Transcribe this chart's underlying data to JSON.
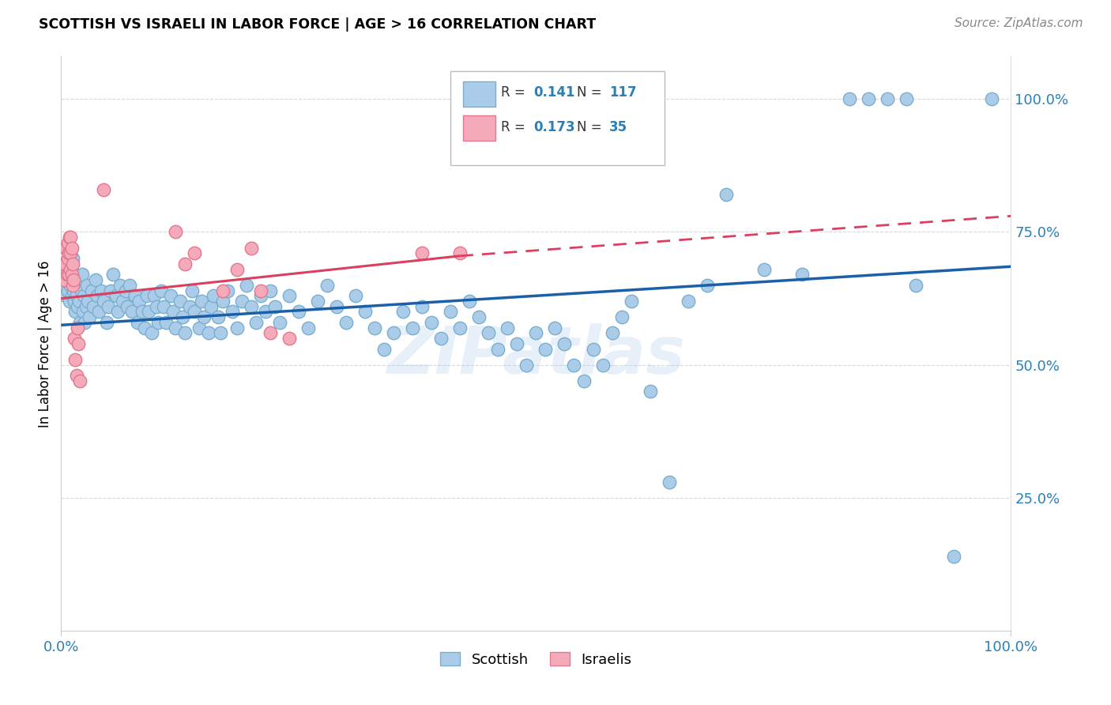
{
  "title": "SCOTTISH VS ISRAELI IN LABOR FORCE | AGE > 16 CORRELATION CHART",
  "source_text": "Source: ZipAtlas.com",
  "ylabel": "In Labor Force | Age > 16",
  "xlim": [
    0.0,
    1.0
  ],
  "ylim": [
    0.0,
    1.08
  ],
  "y_tick_positions": [
    0.25,
    0.5,
    0.75,
    1.0
  ],
  "y_tick_labels": [
    "25.0%",
    "50.0%",
    "75.0%",
    "100.0%"
  ],
  "watermark": "ZIPatlas",
  "blue_color": "#aacce8",
  "pink_color": "#f4aab8",
  "blue_edge": "#7aaece",
  "pink_edge": "#e07890",
  "trend_blue_color": "#1a5fa8",
  "trend_pink_color": "#d94060",
  "blue_trend": [
    0.0,
    0.575,
    1.0,
    0.685
  ],
  "pink_trend_solid": [
    0.0,
    0.625,
    0.42,
    0.705
  ],
  "pink_trend_dashed": [
    0.42,
    0.705,
    1.0,
    0.78
  ],
  "blue_points": [
    [
      0.003,
      0.65
    ],
    [
      0.005,
      0.63
    ],
    [
      0.006,
      0.67
    ],
    [
      0.007,
      0.64
    ],
    [
      0.008,
      0.66
    ],
    [
      0.009,
      0.62
    ],
    [
      0.01,
      0.65
    ],
    [
      0.01,
      0.68
    ],
    [
      0.011,
      0.63
    ],
    [
      0.012,
      0.66
    ],
    [
      0.012,
      0.7
    ],
    [
      0.013,
      0.64
    ],
    [
      0.014,
      0.62
    ],
    [
      0.014,
      0.67
    ],
    [
      0.015,
      0.65
    ],
    [
      0.015,
      0.6
    ],
    [
      0.016,
      0.63
    ],
    [
      0.017,
      0.61
    ],
    [
      0.018,
      0.65
    ],
    [
      0.019,
      0.62
    ],
    [
      0.02,
      0.58
    ],
    [
      0.021,
      0.64
    ],
    [
      0.022,
      0.67
    ],
    [
      0.023,
      0.6
    ],
    [
      0.024,
      0.63
    ],
    [
      0.025,
      0.58
    ],
    [
      0.026,
      0.61
    ],
    [
      0.027,
      0.65
    ],
    [
      0.028,
      0.62
    ],
    [
      0.03,
      0.59
    ],
    [
      0.032,
      0.64
    ],
    [
      0.034,
      0.61
    ],
    [
      0.036,
      0.66
    ],
    [
      0.038,
      0.63
    ],
    [
      0.04,
      0.6
    ],
    [
      0.042,
      0.64
    ],
    [
      0.045,
      0.62
    ],
    [
      0.048,
      0.58
    ],
    [
      0.05,
      0.61
    ],
    [
      0.052,
      0.64
    ],
    [
      0.055,
      0.67
    ],
    [
      0.058,
      0.63
    ],
    [
      0.06,
      0.6
    ],
    [
      0.062,
      0.65
    ],
    [
      0.065,
      0.62
    ],
    [
      0.068,
      0.64
    ],
    [
      0.07,
      0.61
    ],
    [
      0.072,
      0.65
    ],
    [
      0.075,
      0.6
    ],
    [
      0.078,
      0.63
    ],
    [
      0.08,
      0.58
    ],
    [
      0.082,
      0.62
    ],
    [
      0.085,
      0.6
    ],
    [
      0.088,
      0.57
    ],
    [
      0.09,
      0.63
    ],
    [
      0.092,
      0.6
    ],
    [
      0.095,
      0.56
    ],
    [
      0.098,
      0.63
    ],
    [
      0.1,
      0.61
    ],
    [
      0.102,
      0.58
    ],
    [
      0.105,
      0.64
    ],
    [
      0.108,
      0.61
    ],
    [
      0.11,
      0.58
    ],
    [
      0.115,
      0.63
    ],
    [
      0.118,
      0.6
    ],
    [
      0.12,
      0.57
    ],
    [
      0.125,
      0.62
    ],
    [
      0.128,
      0.59
    ],
    [
      0.13,
      0.56
    ],
    [
      0.135,
      0.61
    ],
    [
      0.138,
      0.64
    ],
    [
      0.14,
      0.6
    ],
    [
      0.145,
      0.57
    ],
    [
      0.148,
      0.62
    ],
    [
      0.15,
      0.59
    ],
    [
      0.155,
      0.56
    ],
    [
      0.158,
      0.61
    ],
    [
      0.16,
      0.63
    ],
    [
      0.165,
      0.59
    ],
    [
      0.168,
      0.56
    ],
    [
      0.17,
      0.62
    ],
    [
      0.175,
      0.64
    ],
    [
      0.18,
      0.6
    ],
    [
      0.185,
      0.57
    ],
    [
      0.19,
      0.62
    ],
    [
      0.195,
      0.65
    ],
    [
      0.2,
      0.61
    ],
    [
      0.205,
      0.58
    ],
    [
      0.21,
      0.63
    ],
    [
      0.215,
      0.6
    ],
    [
      0.22,
      0.64
    ],
    [
      0.225,
      0.61
    ],
    [
      0.23,
      0.58
    ],
    [
      0.24,
      0.63
    ],
    [
      0.25,
      0.6
    ],
    [
      0.26,
      0.57
    ],
    [
      0.27,
      0.62
    ],
    [
      0.28,
      0.65
    ],
    [
      0.29,
      0.61
    ],
    [
      0.3,
      0.58
    ],
    [
      0.31,
      0.63
    ],
    [
      0.32,
      0.6
    ],
    [
      0.33,
      0.57
    ],
    [
      0.34,
      0.53
    ],
    [
      0.35,
      0.56
    ],
    [
      0.36,
      0.6
    ],
    [
      0.37,
      0.57
    ],
    [
      0.38,
      0.61
    ],
    [
      0.39,
      0.58
    ],
    [
      0.4,
      0.55
    ],
    [
      0.41,
      0.6
    ],
    [
      0.42,
      0.57
    ],
    [
      0.43,
      0.62
    ],
    [
      0.44,
      0.59
    ],
    [
      0.45,
      0.56
    ],
    [
      0.46,
      0.53
    ],
    [
      0.47,
      0.57
    ],
    [
      0.48,
      0.54
    ],
    [
      0.49,
      0.5
    ],
    [
      0.5,
      0.56
    ],
    [
      0.51,
      0.53
    ],
    [
      0.52,
      0.57
    ],
    [
      0.53,
      0.54
    ],
    [
      0.54,
      0.5
    ],
    [
      0.55,
      0.47
    ],
    [
      0.56,
      0.53
    ],
    [
      0.57,
      0.5
    ],
    [
      0.58,
      0.56
    ],
    [
      0.59,
      0.59
    ],
    [
      0.6,
      0.62
    ],
    [
      0.62,
      0.45
    ],
    [
      0.64,
      0.28
    ],
    [
      0.66,
      0.62
    ],
    [
      0.68,
      0.65
    ],
    [
      0.7,
      0.82
    ],
    [
      0.74,
      0.68
    ],
    [
      0.78,
      0.67
    ],
    [
      0.83,
      1.0
    ],
    [
      0.85,
      1.0
    ],
    [
      0.87,
      1.0
    ],
    [
      0.89,
      1.0
    ],
    [
      0.9,
      0.65
    ],
    [
      0.94,
      0.14
    ],
    [
      0.98,
      1.0
    ]
  ],
  "pink_points": [
    [
      0.003,
      0.66
    ],
    [
      0.004,
      0.69
    ],
    [
      0.005,
      0.72
    ],
    [
      0.006,
      0.67
    ],
    [
      0.007,
      0.7
    ],
    [
      0.007,
      0.73
    ],
    [
      0.008,
      0.67
    ],
    [
      0.008,
      0.71
    ],
    [
      0.009,
      0.74
    ],
    [
      0.01,
      0.68
    ],
    [
      0.01,
      0.71
    ],
    [
      0.01,
      0.74
    ],
    [
      0.011,
      0.67
    ],
    [
      0.011,
      0.72
    ],
    [
      0.012,
      0.65
    ],
    [
      0.012,
      0.69
    ],
    [
      0.013,
      0.66
    ],
    [
      0.014,
      0.55
    ],
    [
      0.015,
      0.51
    ],
    [
      0.016,
      0.48
    ],
    [
      0.017,
      0.57
    ],
    [
      0.018,
      0.54
    ],
    [
      0.02,
      0.47
    ],
    [
      0.045,
      0.83
    ],
    [
      0.12,
      0.75
    ],
    [
      0.13,
      0.69
    ],
    [
      0.14,
      0.71
    ],
    [
      0.17,
      0.64
    ],
    [
      0.185,
      0.68
    ],
    [
      0.2,
      0.72
    ],
    [
      0.21,
      0.64
    ],
    [
      0.22,
      0.56
    ],
    [
      0.24,
      0.55
    ],
    [
      0.38,
      0.71
    ],
    [
      0.42,
      0.71
    ]
  ]
}
